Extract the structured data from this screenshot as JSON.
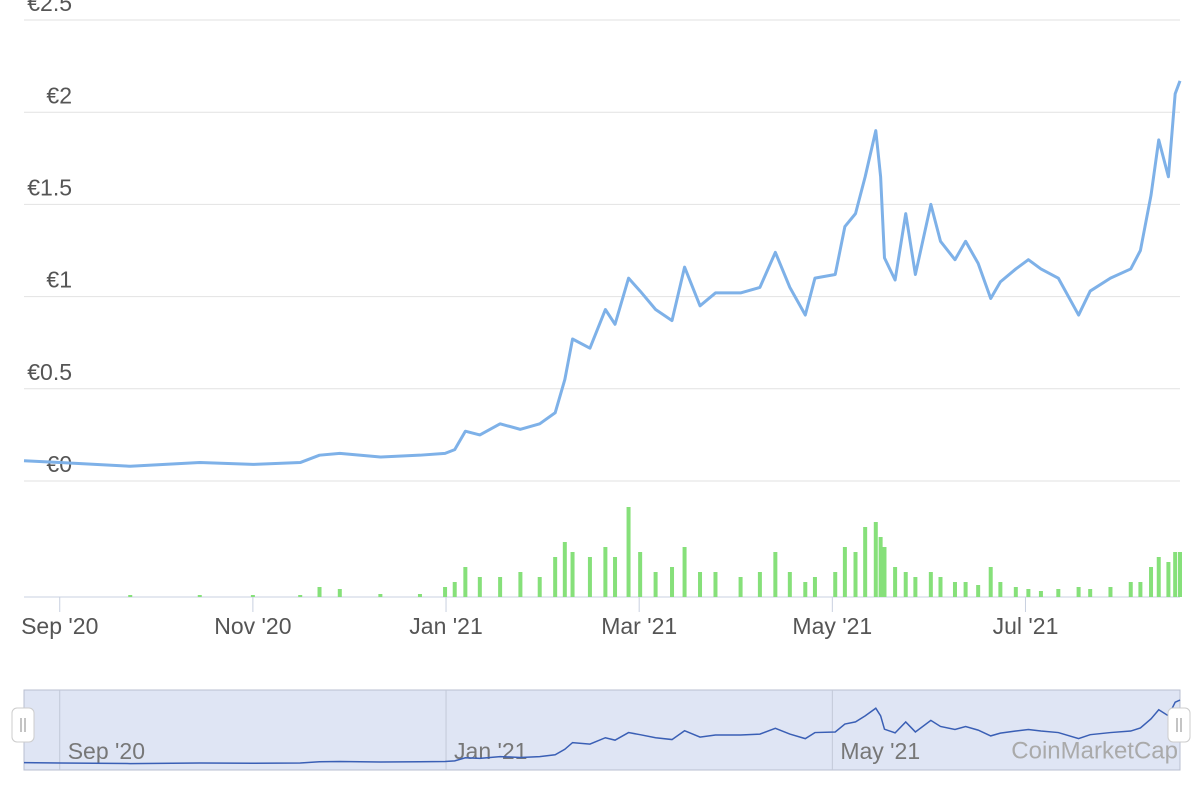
{
  "chart_data": {
    "type": "line",
    "x": [
      -0.37,
      0,
      0.73,
      1.45,
      2,
      2.49,
      2.69,
      2.9,
      3.32,
      3.73,
      3.99,
      4.09,
      4.2,
      4.35,
      4.56,
      4.77,
      4.97,
      5.13,
      5.23,
      5.31,
      5.49,
      5.65,
      5.75,
      5.89,
      6.01,
      6.17,
      6.34,
      6.47,
      6.63,
      6.79,
      7.05,
      7.25,
      7.41,
      7.56,
      7.72,
      7.82,
      8.03,
      8.13,
      8.24,
      8.34,
      8.45,
      8.5,
      8.54,
      8.65,
      8.76,
      8.86,
      9.02,
      9.12,
      9.27,
      9.38,
      9.51,
      9.64,
      9.74,
      9.9,
      10.03,
      10.16,
      10.34,
      10.55,
      10.67,
      10.88,
      11.09,
      11.19,
      11.3,
      11.38,
      11.48,
      11.55,
      11.6
    ],
    "series": [
      {
        "color": "#7eb1e8",
        "values": [
          0.11,
          0.1,
          0.08,
          0.1,
          0.09,
          0.1,
          0.14,
          0.15,
          0.13,
          0.14,
          0.15,
          0.17,
          0.27,
          0.25,
          0.31,
          0.28,
          0.31,
          0.37,
          0.55,
          0.77,
          0.72,
          0.93,
          0.85,
          1.1,
          1.03,
          0.93,
          0.87,
          1.16,
          0.95,
          1.02,
          1.02,
          1.05,
          1.24,
          1.05,
          0.9,
          1.1,
          1.12,
          1.38,
          1.45,
          1.65,
          1.9,
          1.65,
          1.21,
          1.09,
          1.45,
          1.12,
          1.5,
          1.3,
          1.2,
          1.3,
          1.18,
          0.99,
          1.08,
          1.15,
          1.2,
          1.15,
          1.1,
          0.9,
          1.03,
          1.1,
          1.15,
          1.25,
          1.55,
          1.85,
          1.65,
          2.1,
          2.17
        ]
      },
      {
        "color": "#86e07a",
        "values": [
          0,
          0,
          2,
          2,
          2,
          2,
          10,
          8,
          3,
          3,
          10,
          15,
          30,
          20,
          20,
          25,
          20,
          40,
          55,
          45,
          40,
          50,
          40,
          90,
          45,
          25,
          30,
          50,
          25,
          25,
          20,
          25,
          45,
          25,
          15,
          20,
          25,
          50,
          45,
          70,
          75,
          60,
          50,
          30,
          25,
          20,
          25,
          20,
          15,
          15,
          12,
          30,
          15,
          10,
          8,
          6,
          8,
          10,
          8,
          10,
          15,
          15,
          30,
          40,
          35,
          45,
          45
        ]
      }
    ],
    "xlim": [
      -0.37,
      11.6
    ],
    "xticks": [
      {
        "value": 0,
        "label": "Sep '20"
      },
      {
        "value": 2,
        "label": "Nov '20"
      },
      {
        "value": 4,
        "label": "Jan '21"
      },
      {
        "value": 6,
        "label": "Mar '21"
      },
      {
        "value": 8,
        "label": "May '21"
      },
      {
        "value": 10,
        "label": "Jul '21"
      }
    ],
    "ylim": [
      0,
      2.5
    ],
    "yticks": [
      {
        "value": 0,
        "label": "€0"
      },
      {
        "value": 0.5,
        "label": "€0.5"
      },
      {
        "value": 1,
        "label": "€1"
      },
      {
        "value": 1.5,
        "label": "€1.5"
      },
      {
        "value": 2,
        "label": "€2"
      },
      {
        "value": 2.5,
        "label": "€2.5"
      }
    ],
    "volume_lim": [
      0,
      100
    ],
    "grid": true,
    "navigator_color": "#3a5fb5",
    "watermark": "CoinMarketCap"
  }
}
